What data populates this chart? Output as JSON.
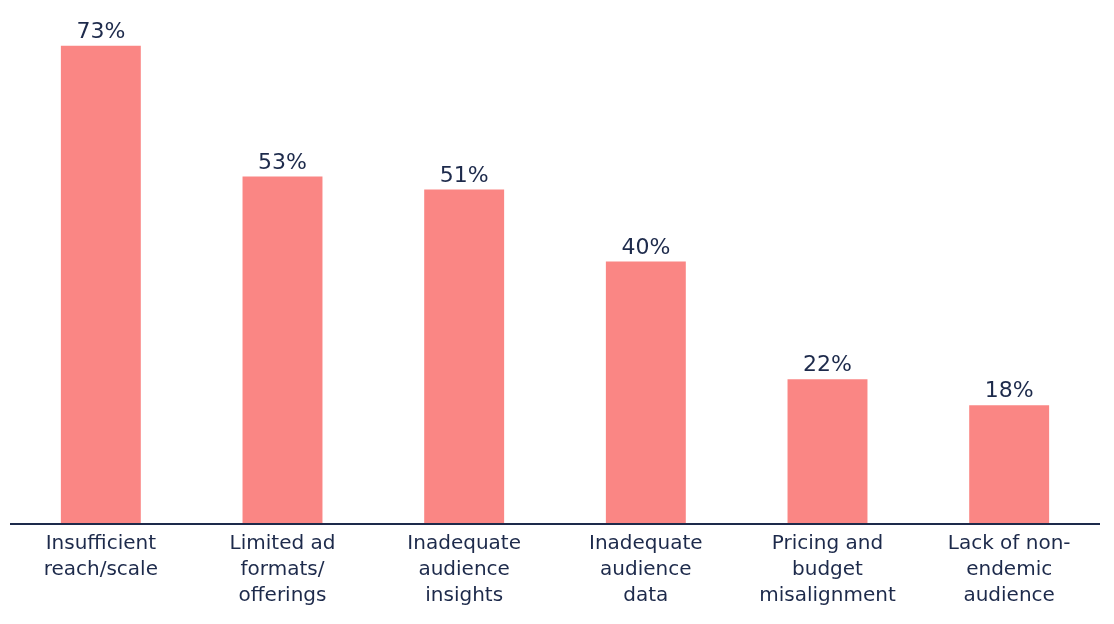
{
  "chart_data": {
    "type": "bar",
    "categories": [
      "Insufficient reach/scale",
      "Limited ad formats/ offerings",
      "Inadequate audience insights",
      "Inadequate audience data",
      "Pricing and budget misalignment",
      "Lack of non-endemic audience"
    ],
    "values": [
      73,
      53,
      51,
      40,
      22,
      18
    ],
    "value_labels": [
      "73%",
      "53%",
      "51%",
      "40%",
      "22%",
      "18%"
    ],
    "color": "#fa8684",
    "ylim": [
      0,
      80
    ]
  }
}
